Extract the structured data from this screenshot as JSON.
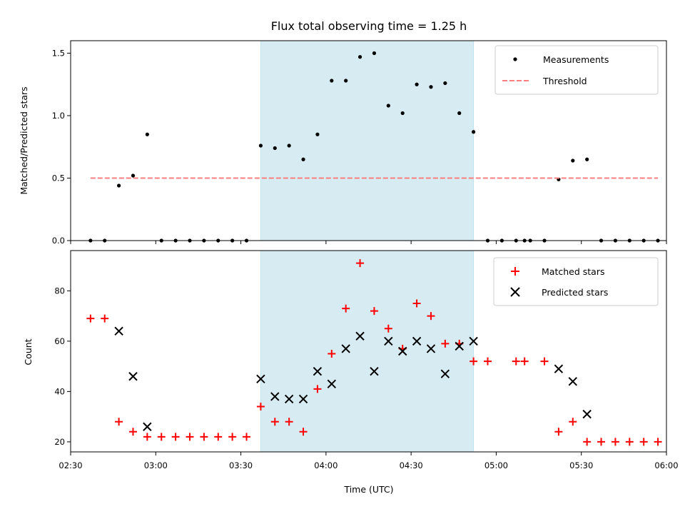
{
  "chart_data": [
    {
      "type": "scatter",
      "title": "Flux total observing time = 1.25 h",
      "xlabel": "",
      "ylabel": "Matched/Predicted stars",
      "xlim": [
        "02:30",
        "06:00"
      ],
      "ylim": [
        0,
        1.6
      ],
      "yticks": [
        "0.0",
        "0.5",
        "1.0",
        "1.5"
      ],
      "grid": false,
      "legend_position": "top-right",
      "highlight_span": {
        "start": "03:37",
        "end": "04:52",
        "color": "#add8e6"
      },
      "colors": {
        "measurements": "#000000",
        "threshold": "#ff7f7f"
      },
      "series": [
        {
          "name": "Measurements",
          "marker": "dot",
          "x": [
            "02:37",
            "02:42",
            "02:47",
            "02:52",
            "02:57",
            "03:02",
            "03:07",
            "03:12",
            "03:17",
            "03:22",
            "03:27",
            "03:32",
            "03:37",
            "03:42",
            "03:47",
            "03:52",
            "03:57",
            "04:02",
            "04:07",
            "04:12",
            "04:17",
            "04:22",
            "04:27",
            "04:32",
            "04:37",
            "04:42",
            "04:47",
            "04:52",
            "04:57",
            "05:02",
            "05:07",
            "05:10",
            "05:12",
            "05:17",
            "05:22",
            "05:27",
            "05:32",
            "05:37",
            "05:42",
            "05:47",
            "05:52",
            "05:57"
          ],
          "y": [
            0,
            0,
            0.44,
            0.52,
            0.85,
            0,
            0,
            0,
            0,
            0,
            0,
            0,
            0.76,
            0.74,
            0.76,
            0.65,
            0.85,
            1.28,
            1.28,
            1.47,
            1.5,
            1.08,
            1.02,
            1.25,
            1.23,
            1.26,
            1.02,
            0.87,
            0,
            0,
            0,
            0,
            0,
            0,
            0.49,
            0.64,
            0.65,
            0,
            0,
            0,
            0,
            0
          ]
        },
        {
          "name": "Threshold",
          "marker": "dashed-line",
          "x": [
            "02:37",
            "05:57"
          ],
          "y": [
            0.5,
            0.5
          ]
        }
      ]
    },
    {
      "type": "scatter",
      "title": "",
      "xlabel": "Time (UTC)",
      "ylabel": "Count",
      "xlim": [
        "02:30",
        "06:00"
      ],
      "ylim": [
        16,
        96
      ],
      "xticks": [
        "02:30",
        "03:00",
        "03:30",
        "04:00",
        "04:30",
        "05:00",
        "05:30",
        "06:00"
      ],
      "yticks": [
        "20",
        "40",
        "60",
        "80"
      ],
      "grid": false,
      "legend_position": "top-right",
      "highlight_span": {
        "start": "03:37",
        "end": "04:52",
        "color": "#add8e6"
      },
      "colors": {
        "matched": "#ff0000",
        "predicted": "#000000"
      },
      "series": [
        {
          "name": "Matched stars",
          "marker": "plus",
          "x": [
            "02:37",
            "02:42",
            "02:47",
            "02:52",
            "02:57",
            "03:02",
            "03:07",
            "03:12",
            "03:17",
            "03:22",
            "03:27",
            "03:32",
            "03:37",
            "03:42",
            "03:47",
            "03:52",
            "03:57",
            "04:02",
            "04:07",
            "04:12",
            "04:17",
            "04:22",
            "04:27",
            "04:32",
            "04:37",
            "04:42",
            "04:47",
            "04:52",
            "04:57",
            "05:07",
            "05:10",
            "05:17",
            "05:22",
            "05:27",
            "05:32",
            "05:37",
            "05:42",
            "05:47",
            "05:52",
            "05:57"
          ],
          "y": [
            69,
            69,
            28,
            24,
            22,
            22,
            22,
            22,
            22,
            22,
            22,
            22,
            34,
            28,
            28,
            24,
            41,
            55,
            73,
            91,
            72,
            65,
            57,
            75,
            70,
            59,
            59,
            52,
            52,
            52,
            52,
            52,
            24,
            28,
            20,
            20,
            20,
            20,
            20,
            20
          ]
        },
        {
          "name": "Predicted stars",
          "marker": "x",
          "x": [
            "02:47",
            "02:52",
            "02:57",
            "03:37",
            "03:42",
            "03:47",
            "03:52",
            "03:57",
            "04:02",
            "04:07",
            "04:12",
            "04:17",
            "04:22",
            "04:27",
            "04:32",
            "04:37",
            "04:42",
            "04:47",
            "04:52",
            "05:22",
            "05:27",
            "05:32"
          ],
          "y": [
            64,
            46,
            26,
            45,
            38,
            37,
            37,
            48,
            43,
            57,
            62,
            48,
            60,
            56,
            60,
            57,
            47,
            58,
            60,
            49,
            44,
            31
          ]
        }
      ]
    }
  ]
}
